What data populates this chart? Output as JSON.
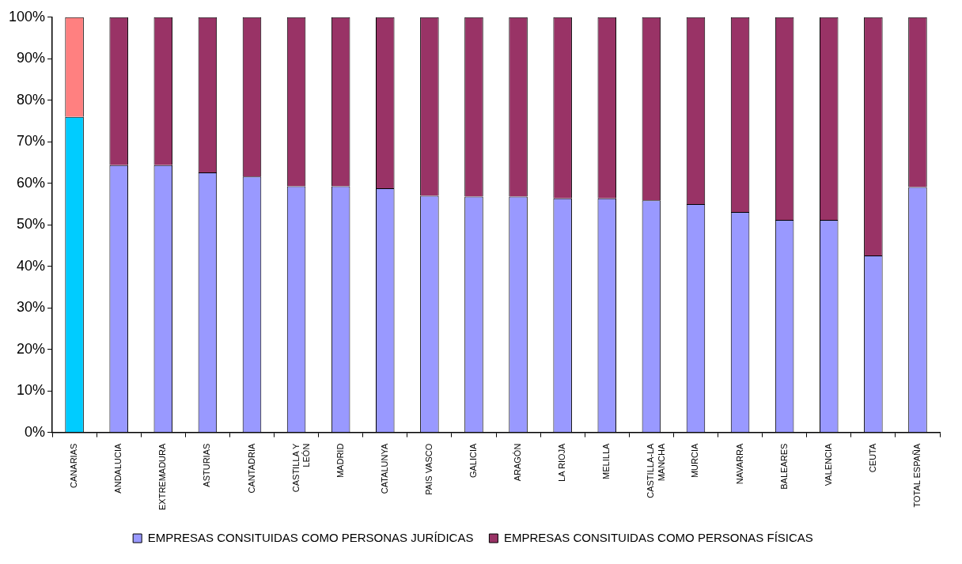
{
  "chart_data": {
    "type": "bar",
    "stacked": true,
    "categories": [
      "CANARIAS",
      "ANDALUCIA",
      "EXTREMADURA",
      "ASTURIAS",
      "CANTADRIA",
      "CASTILLA Y LEÓN",
      "MADRID",
      "CATALUNYA",
      "PAIS VASCO",
      "GALICIA",
      "ARAGÓN",
      "LA RIOJA",
      "MELILLA",
      "CASTILLA-LA MANCHA",
      "MURCIA",
      "NAVARRA",
      "BALEARES",
      "VALENCIA",
      "CEUTA",
      "TOTAL ESPAÑA"
    ],
    "series": [
      {
        "name": "EMPRESAS CONSITUIDAS COMO PERSONAS JURÍDICAS",
        "color": "#9999ff",
        "colors": [
          "#00ccff",
          "#9999ff",
          "#9999ff",
          "#9999ff",
          "#9999ff",
          "#9999ff",
          "#9999ff",
          "#9999ff",
          "#9999ff",
          "#9999ff",
          "#9999ff",
          "#9999ff",
          "#9999ff",
          "#9999ff",
          "#9999ff",
          "#9999ff",
          "#9999ff",
          "#9999ff",
          "#9999ff",
          "#9999ff"
        ],
        "values": [
          76,
          64.4,
          64.4,
          62.6,
          61.6,
          59.3,
          59.3,
          58.8,
          57,
          56.8,
          56.8,
          56.4,
          56.4,
          55.9,
          55,
          53.1,
          51.2,
          51.2,
          42.6,
          59.1
        ]
      },
      {
        "name": "EMPRESAS CONSITUIDAS COMO PERSONAS FÍSICAS",
        "color": "#993366",
        "colors": [
          "#ff8080",
          "#993366",
          "#993366",
          "#993366",
          "#993366",
          "#993366",
          "#993366",
          "#993366",
          "#993366",
          "#993366",
          "#993366",
          "#993366",
          "#993366",
          "#993366",
          "#993366",
          "#993366",
          "#993366",
          "#993366",
          "#993366",
          "#993366"
        ],
        "values": [
          24,
          35.6,
          35.6,
          37.4,
          38.4,
          40.7,
          40.7,
          41.2,
          43,
          43.2,
          43.2,
          43.6,
          43.6,
          44.1,
          45,
          46.9,
          48.8,
          48.8,
          57.4,
          40.9
        ]
      }
    ],
    "ylim": [
      0,
      100
    ],
    "yticks": [
      {
        "value": 0,
        "label": "0%"
      },
      {
        "value": 10,
        "label": "10%"
      },
      {
        "value": 20,
        "label": "20%"
      },
      {
        "value": 30,
        "label": "30%"
      },
      {
        "value": 40,
        "label": "40%"
      },
      {
        "value": 50,
        "label": "50%"
      },
      {
        "value": 60,
        "label": "60%"
      },
      {
        "value": 70,
        "label": "70%"
      },
      {
        "value": 80,
        "label": "80%"
      },
      {
        "value": 90,
        "label": "90%"
      },
      {
        "value": 100,
        "label": "100%"
      }
    ],
    "grid": false,
    "legend": "bottom"
  }
}
